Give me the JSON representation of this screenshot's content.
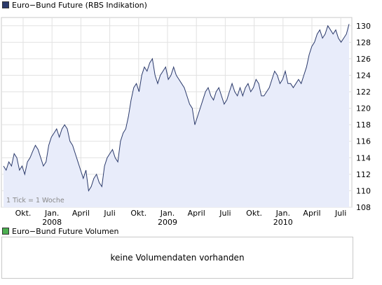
{
  "legend": {
    "price_label": "Euro−Bund Future (RBS Indikation)",
    "price_color": "#2b3a6b",
    "volume_label": "Euro−Bund Future Volumen",
    "volume_color": "#4caf50"
  },
  "tick_note": "1 Tick = 1 Woche",
  "volume_message": "keine Volumendaten vorhanden",
  "chart_data": {
    "type": "area",
    "title": "Euro−Bund Future (RBS Indikation)",
    "xlabel": "",
    "ylabel": "",
    "ylim": [
      108,
      131
    ],
    "yticks": [
      108,
      110,
      112,
      114,
      116,
      118,
      120,
      122,
      124,
      126,
      128,
      130
    ],
    "x_tick_labels": [
      {
        "label": "Okt.",
        "year": ""
      },
      {
        "label": "Jan.",
        "year": "2008"
      },
      {
        "label": "April",
        "year": ""
      },
      {
        "label": "Juli",
        "year": ""
      },
      {
        "label": "Okt.",
        "year": ""
      },
      {
        "label": "Jan.",
        "year": "2009"
      },
      {
        "label": "April",
        "year": ""
      },
      {
        "label": "Juli",
        "year": ""
      },
      {
        "label": "Okt.",
        "year": ""
      },
      {
        "label": "Jan.",
        "year": "2010"
      },
      {
        "label": "April",
        "year": ""
      },
      {
        "label": "Juli",
        "year": ""
      }
    ],
    "grid": true,
    "line_color": "#2b3a6b",
    "fill_color": "#e8ecfa",
    "series": [
      {
        "values": [
          113.0,
          112.5,
          113.5,
          113.0,
          114.5,
          114.0,
          112.5,
          113.0,
          112.0,
          113.5,
          114.0,
          114.8,
          115.5,
          115.0,
          114.0,
          113.0,
          113.5,
          115.5,
          116.5,
          117.0,
          117.5,
          116.5,
          117.5,
          118.0,
          117.5,
          116.0,
          115.5,
          114.5,
          113.5,
          112.5,
          111.5,
          112.5,
          110.0,
          110.5,
          111.5,
          112.0,
          111.0,
          110.5,
          113.0,
          114.0,
          114.5,
          115.0,
          114.0,
          113.5,
          116.0,
          117.0,
          117.5,
          119.0,
          121.0,
          122.5,
          123.0,
          122.0,
          124.0,
          125.0,
          124.5,
          125.5,
          126.0,
          124.0,
          123.0,
          124.0,
          124.5,
          125.0,
          123.5,
          124.0,
          125.0,
          124.0,
          123.5,
          123.0,
          122.5,
          121.5,
          120.5,
          120.0,
          118.0,
          119.0,
          120.0,
          121.0,
          122.0,
          122.5,
          121.5,
          121.0,
          122.0,
          122.5,
          121.5,
          120.5,
          121.0,
          122.0,
          123.0,
          122.0,
          121.5,
          122.5,
          121.5,
          122.5,
          123.0,
          122.0,
          122.5,
          123.5,
          123.0,
          121.5,
          121.5,
          122.0,
          122.5,
          123.5,
          124.5,
          124.0,
          123.0,
          123.5,
          124.5,
          123.0,
          123.0,
          122.5,
          123.0,
          123.5,
          123.0,
          124.0,
          125.0,
          126.5,
          127.5,
          128.0,
          129.0,
          129.5,
          128.5,
          129.0,
          130.0,
          129.5,
          129.0,
          129.5,
          128.5,
          128.0,
          128.5,
          129.0,
          130.2
        ]
      }
    ]
  }
}
